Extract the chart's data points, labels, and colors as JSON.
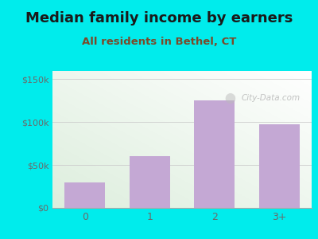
{
  "title": "Median family income by earners",
  "subtitle": "All residents in Bethel, CT",
  "categories": [
    "0",
    "1",
    "2",
    "3+"
  ],
  "values": [
    30000,
    60000,
    125000,
    97000
  ],
  "bar_color": "#c4a8d4",
  "outer_bg": "#00ecec",
  "title_color": "#1a1a1a",
  "subtitle_color": "#7a4a2a",
  "tick_color": "#6a6a6a",
  "yticks": [
    0,
    50000,
    100000,
    150000
  ],
  "ytick_labels": [
    "$0",
    "$50k",
    "$100k",
    "$150k"
  ],
  "ylim": [
    0,
    160000
  ],
  "title_fontsize": 13,
  "subtitle_fontsize": 9.5,
  "watermark": "City-Data.com"
}
